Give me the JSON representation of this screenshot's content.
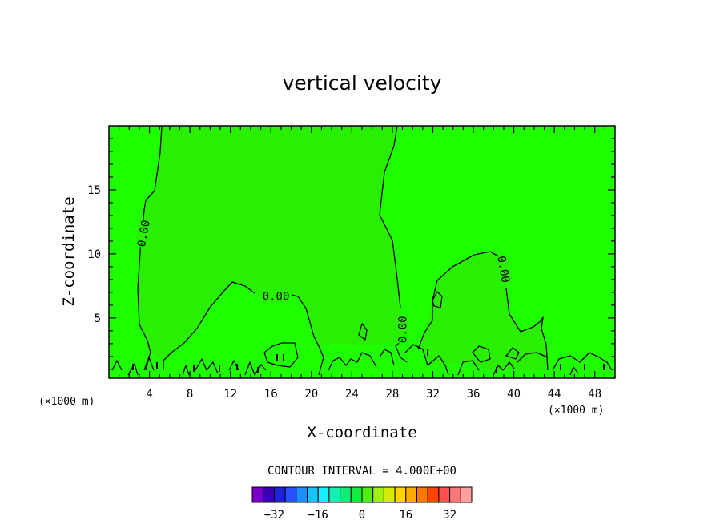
{
  "chart_data": {
    "type": "contour",
    "title": "vertical velocity",
    "xlabel": "X-coordinate",
    "ylabel": "Z-coordinate",
    "x_units": "(×1000 m)",
    "x_units_right": "(×1000 m)",
    "xlim": [
      0,
      50
    ],
    "ylim": [
      0.3,
      20
    ],
    "x_ticks": [
      4,
      8,
      12,
      16,
      20,
      24,
      28,
      32,
      36,
      40,
      44,
      48
    ],
    "y_ticks": [
      5,
      10,
      15
    ],
    "contour_interval_text": "CONTOUR INTERVAL = 4.000E+00",
    "contour_labels": [
      {
        "text": "0.00",
        "x": 3.4,
        "y": 11.6,
        "rotate": -80
      },
      {
        "text": "0.00",
        "x": 16.5,
        "y": 6.7,
        "rotate": 0
      },
      {
        "text": "0.00",
        "x": 29.0,
        "y": 4.1,
        "rotate": -90
      },
      {
        "text": "0.00",
        "x": 39.0,
        "y": 8.8,
        "rotate": 80
      }
    ],
    "field_color": "#1eff00",
    "field_color_light": "#28f000",
    "colorbar": {
      "labels": [
        "-32",
        "-16",
        "0",
        "16",
        "32"
      ],
      "label_values": [
        -32,
        -16,
        0,
        16,
        32
      ],
      "min": -40,
      "max": 40,
      "colors": [
        "#7a00c8",
        "#3a00b4",
        "#2020d8",
        "#2850ff",
        "#1e8cff",
        "#19c3ff",
        "#14f0ff",
        "#14f0b4",
        "#14eb78",
        "#14eb3c",
        "#50f014",
        "#a0f014",
        "#d2eb00",
        "#ffd200",
        "#ffaa00",
        "#ff7800",
        "#ff4600",
        "#ff5050",
        "#ff7878",
        "#ffa0a0"
      ]
    }
  }
}
